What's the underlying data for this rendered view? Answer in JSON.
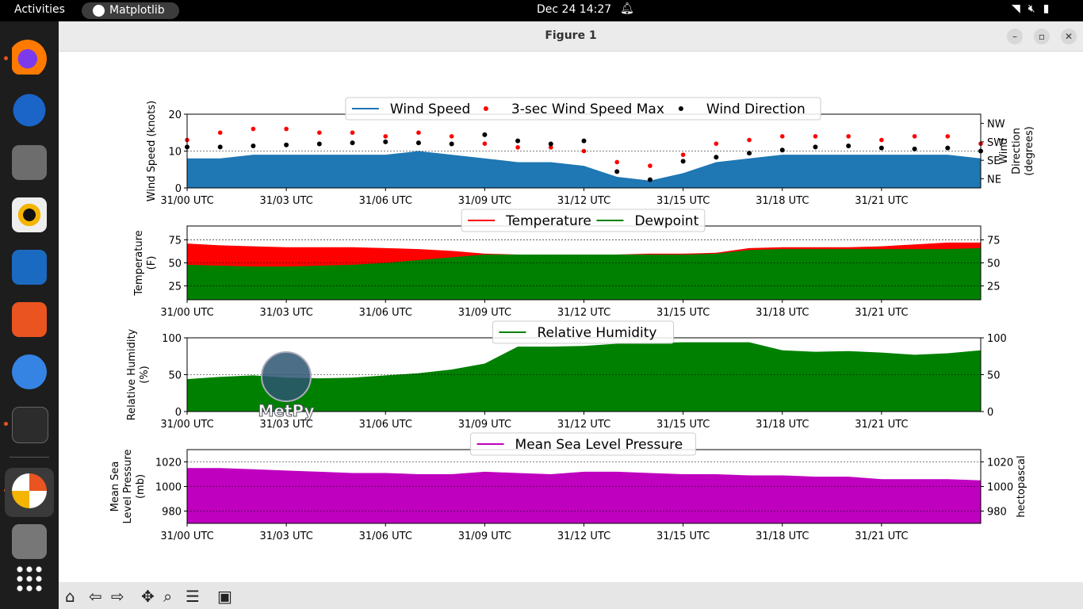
{
  "topbar": {
    "activities": "Activities",
    "app_name": "Matplotlib",
    "clock": "Dec 24  14:27"
  },
  "window": {
    "title": "Figure 1"
  },
  "colors": {
    "wind_speed": "#1f77b4",
    "wind_max": "#ff0000",
    "wind_dir": "#000000",
    "temperature": "#ff0000",
    "dewpoint": "#008000",
    "rh": "#008000",
    "pressure": "#bf00bf"
  },
  "dock": [
    "firefox-icon",
    "thunderbird-icon",
    "files-icon",
    "rhythmbox-icon",
    "writer-icon",
    "app-center-icon",
    "help-icon",
    "terminal-icon",
    "matplotlib-icon",
    "trash-icon",
    "show-apps-icon"
  ],
  "toolbar": [
    "home-icon",
    "back-icon",
    "forward-icon",
    "pan-icon",
    "zoom-icon",
    "configure-icon",
    "save-icon"
  ],
  "x_ticks": [
    "31/00 UTC",
    "31/03 UTC",
    "31/06 UTC",
    "31/09 UTC",
    "31/12 UTC",
    "31/15 UTC",
    "31/18 UTC",
    "31/21 UTC"
  ],
  "logo_text": "MetPy",
  "chart_data": [
    {
      "type": "area",
      "ylabel": "Wind Speed (knots)",
      "ylabel2": "Wind\nDirection\n(degrees)",
      "ylim": [
        0,
        20
      ],
      "yticks": [
        "0",
        "10",
        "20"
      ],
      "ylim2": [
        0,
        360
      ],
      "yticks2": [
        "NE",
        "SE",
        "SW",
        "NW"
      ],
      "grid": true,
      "legend_placement": "top-center",
      "series": [
        {
          "name": "Wind Speed",
          "kind": "area",
          "x": [
            0,
            1,
            2,
            3,
            4,
            5,
            6,
            7,
            8,
            9,
            10,
            11,
            12,
            13,
            14,
            15,
            16,
            17,
            18,
            19,
            20,
            21,
            22,
            23,
            24
          ],
          "values": [
            8,
            8,
            9,
            9,
            9,
            9,
            9,
            10,
            9,
            8,
            7,
            7,
            6,
            3,
            2,
            4,
            7,
            8,
            9,
            9,
            9,
            9,
            9,
            9,
            8
          ]
        },
        {
          "name": "3-sec Wind Speed Max",
          "kind": "points",
          "x": [
            0,
            1,
            2,
            3,
            4,
            5,
            6,
            7,
            8,
            9,
            10,
            11,
            12,
            13,
            14,
            15,
            16,
            17,
            18,
            19,
            20,
            21,
            22,
            23,
            24
          ],
          "values": [
            13,
            15,
            16,
            16,
            15,
            15,
            14,
            15,
            14,
            12,
            11,
            11,
            10,
            7,
            6,
            9,
            12,
            13,
            14,
            14,
            14,
            13,
            14,
            14,
            12
          ]
        },
        {
          "name": "Wind Direction",
          "kind": "points",
          "x": [
            0,
            1,
            2,
            3,
            4,
            5,
            6,
            7,
            8,
            9,
            10,
            11,
            12,
            13,
            14,
            15,
            16,
            17,
            18,
            19,
            20,
            21,
            22,
            23,
            24
          ],
          "values": [
            200,
            200,
            205,
            210,
            215,
            220,
            225,
            220,
            215,
            260,
            230,
            215,
            230,
            80,
            40,
            130,
            150,
            170,
            185,
            200,
            205,
            195,
            190,
            195,
            180
          ]
        }
      ]
    },
    {
      "type": "area",
      "ylabel": "Temperature\n(F)",
      "ylim": [
        10,
        90
      ],
      "yticks": [
        "25",
        "50",
        "75"
      ],
      "grid": true,
      "legend_placement": "top-center",
      "series": [
        {
          "name": "Temperature",
          "x": [
            0,
            1,
            2,
            3,
            4,
            5,
            6,
            7,
            8,
            9,
            10,
            11,
            12,
            13,
            14,
            15,
            16,
            17,
            18,
            19,
            20,
            21,
            22,
            23,
            24
          ],
          "values": [
            71,
            69,
            68,
            67,
            67,
            67,
            66,
            65,
            63,
            60,
            59,
            59,
            59,
            59,
            60,
            60,
            61,
            66,
            67,
            67,
            67,
            68,
            70,
            72,
            72
          ]
        },
        {
          "name": "Dewpoint",
          "x": [
            0,
            1,
            2,
            3,
            4,
            5,
            6,
            7,
            8,
            9,
            10,
            11,
            12,
            13,
            14,
            15,
            16,
            17,
            18,
            19,
            20,
            21,
            22,
            23,
            24
          ],
          "values": [
            48,
            47,
            46,
            46,
            47,
            48,
            50,
            53,
            56,
            59,
            59,
            59,
            59,
            59,
            59,
            59,
            60,
            64,
            65,
            65,
            65,
            65,
            65,
            65,
            66
          ]
        }
      ]
    },
    {
      "type": "area",
      "ylabel": "Relative Humidity\n(%)",
      "ylim": [
        0,
        100
      ],
      "yticks": [
        "0",
        "50",
        "100"
      ],
      "grid": true,
      "legend_placement": "top-center",
      "series": [
        {
          "name": "Relative Humidity",
          "x": [
            0,
            1,
            2,
            3,
            4,
            5,
            6,
            7,
            8,
            9,
            10,
            11,
            12,
            13,
            14,
            15,
            16,
            17,
            18,
            19,
            20,
            21,
            22,
            23,
            24
          ],
          "values": [
            44,
            47,
            49,
            46,
            45,
            46,
            49,
            52,
            57,
            65,
            88,
            88,
            89,
            92,
            93,
            94,
            94,
            94,
            83,
            81,
            82,
            80,
            77,
            79,
            83
          ]
        }
      ]
    },
    {
      "type": "area",
      "ylabel": "Mean Sea\nLevel Pressure\n(mb)",
      "ylabel2": "hectopascal",
      "ylim": [
        970,
        1030
      ],
      "yticks": [
        "980",
        "1000",
        "1020"
      ],
      "yticks2": [
        "980",
        "1000",
        "1020"
      ],
      "grid": true,
      "legend_placement": "top-center",
      "series": [
        {
          "name": "Mean Sea Level Pressure",
          "x": [
            0,
            1,
            2,
            3,
            4,
            5,
            6,
            7,
            8,
            9,
            10,
            11,
            12,
            13,
            14,
            15,
            16,
            17,
            18,
            19,
            20,
            21,
            22,
            23,
            24
          ],
          "values": [
            1015,
            1015,
            1014,
            1013,
            1012,
            1011,
            1011,
            1010,
            1010,
            1012,
            1011,
            1010,
            1012,
            1012,
            1011,
            1010,
            1010,
            1009,
            1009,
            1008,
            1008,
            1006,
            1006,
            1006,
            1005
          ]
        }
      ]
    }
  ]
}
